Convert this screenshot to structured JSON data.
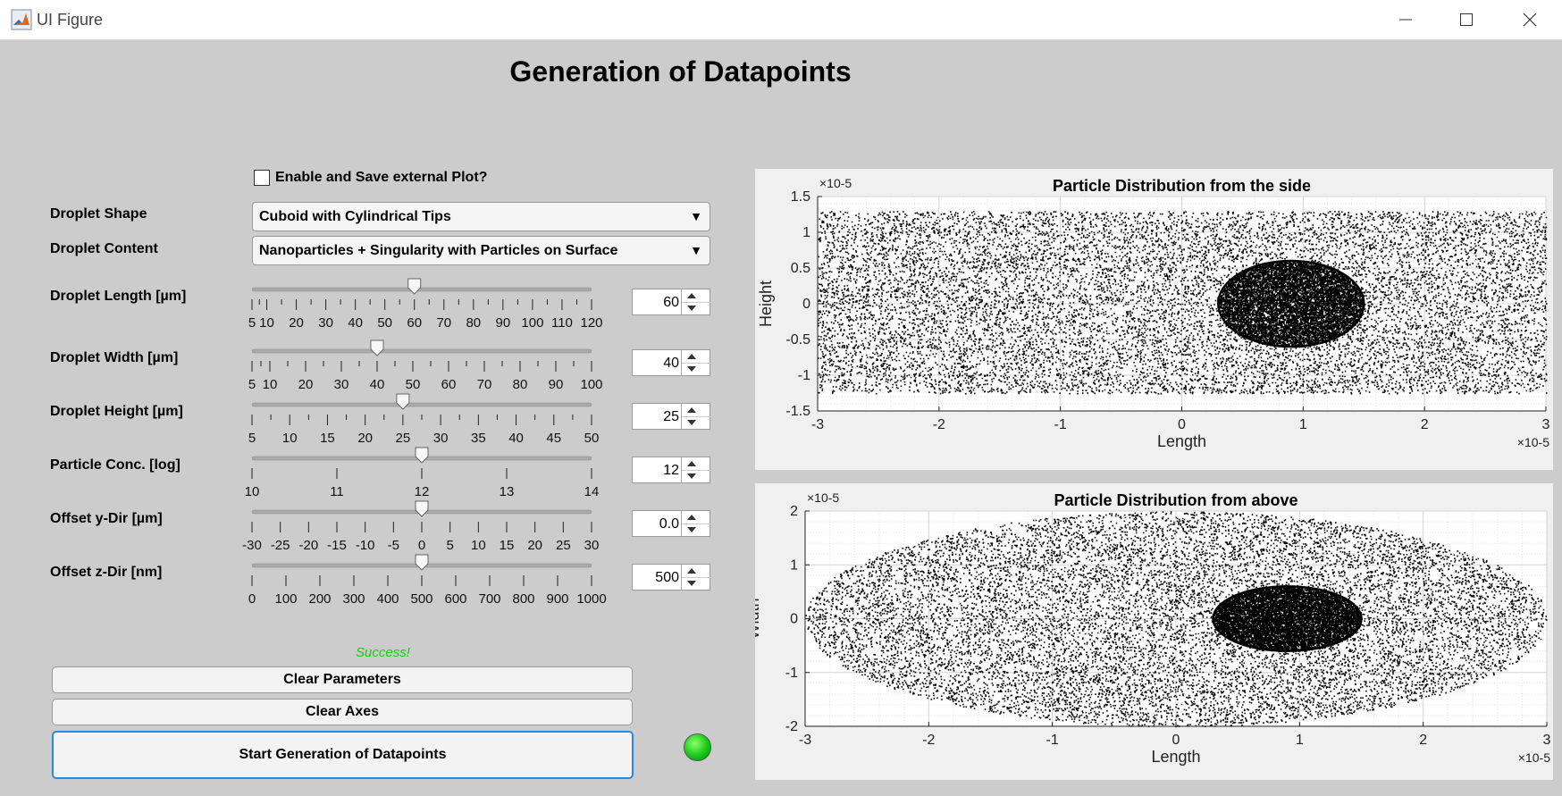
{
  "window": {
    "title": "UI Figure"
  },
  "main": {
    "title": "Generation of Datapoints"
  },
  "options": {
    "enable_external_plot_label": "Enable and Save external Plot?",
    "enable_external_plot_checked": false
  },
  "droplet_shape": {
    "label": "Droplet Shape",
    "value": "Cuboid with Cylindrical Tips"
  },
  "droplet_content": {
    "label": "Droplet Content",
    "value": "Nanoparticles + Singularity with Particles on Surface"
  },
  "sliders": [
    {
      "label": "Droplet Length [µm]",
      "min": 5,
      "max": 120,
      "value": 60,
      "value_text": "60",
      "ticks": [
        "5",
        "10",
        "20",
        "30",
        "40",
        "50",
        "60",
        "70",
        "80",
        "90",
        "100",
        "110",
        "120"
      ],
      "tick_values": [
        5,
        10,
        20,
        30,
        40,
        50,
        60,
        70,
        80,
        90,
        100,
        110,
        120
      ],
      "minor": 2
    },
    {
      "label": "Droplet Width [µm]",
      "min": 5,
      "max": 100,
      "value": 40,
      "value_text": "40",
      "ticks": [
        "5",
        "10",
        "20",
        "30",
        "40",
        "50",
        "60",
        "70",
        "80",
        "90",
        "100"
      ],
      "tick_values": [
        5,
        10,
        20,
        30,
        40,
        50,
        60,
        70,
        80,
        90,
        100
      ],
      "minor": 2
    },
    {
      "label": "Droplet Height [µm]",
      "min": 5,
      "max": 50,
      "value": 25,
      "value_text": "25",
      "ticks": [
        "5",
        "10",
        "15",
        "20",
        "25",
        "30",
        "35",
        "40",
        "45",
        "50"
      ],
      "tick_values": [
        5,
        10,
        15,
        20,
        25,
        30,
        35,
        40,
        45,
        50
      ],
      "minor": 2
    },
    {
      "label": "Particle Conc. [log]",
      "min": 10,
      "max": 14,
      "value": 12,
      "value_text": "12",
      "ticks": [
        "10",
        "11",
        "12",
        "13",
        "14"
      ],
      "tick_values": [
        10,
        11,
        12,
        13,
        14
      ],
      "minor": 1
    },
    {
      "label": "Offset y-Dir [µm]",
      "min": -30,
      "max": 30,
      "value": 0,
      "value_text": "0.0",
      "ticks": [
        "-30",
        "-25",
        "-20",
        "-15",
        "-10",
        "-5",
        "0",
        "5",
        "10",
        "15",
        "20",
        "25",
        "30"
      ],
      "tick_values": [
        -30,
        -25,
        -20,
        -15,
        -10,
        -5,
        0,
        5,
        10,
        15,
        20,
        25,
        30
      ],
      "minor": 1
    },
    {
      "label": "Offset z-Dir [nm]",
      "min": 0,
      "max": 1000,
      "value": 500,
      "value_text": "500",
      "ticks": [
        "0",
        "100",
        "200",
        "300",
        "400",
        "500",
        "600",
        "700",
        "800",
        "900",
        "1000"
      ],
      "tick_values": [
        0,
        100,
        200,
        300,
        400,
        500,
        600,
        700,
        800,
        900,
        1000
      ],
      "minor": 1
    }
  ],
  "status": {
    "text": "Success!",
    "color": "#10d010"
  },
  "buttons": {
    "clear_parameters": "Clear Parameters",
    "clear_axes": "Clear Axes",
    "start": "Start Generation of Datapoints"
  },
  "lamp": {
    "color": "#18c818"
  },
  "chart_data": [
    {
      "type": "scatter",
      "title": "Particle Distribution from the side",
      "xlabel": "Length",
      "ylabel": "Height",
      "xlim": [
        -3e-05,
        3e-05
      ],
      "ylim": [
        -1.5e-05,
        1.5e-05
      ],
      "xticks": [
        "-3",
        "-2",
        "-1",
        "0",
        "1",
        "2",
        "3"
      ],
      "yticks": [
        "-1.5",
        "-1",
        "-0.5",
        "0",
        "0.5",
        "1",
        "1.5"
      ],
      "x_exponent": "×10^-5",
      "y_exponent": "×10^-5",
      "grid": true,
      "distribution": {
        "shape": "rectangle",
        "x_range": [
          -3e-05,
          3e-05
        ],
        "y_range": [
          -1.25e-05,
          1.3e-05
        ]
      },
      "cluster": {
        "shape": "ellipse",
        "center": [
          9e-06,
          0
        ],
        "radius": [
          6e-06,
          6e-06
        ]
      }
    },
    {
      "type": "scatter",
      "title": "Particle Distribution from above",
      "xlabel": "Length",
      "ylabel": "Width",
      "xlim": [
        -3e-05,
        3e-05
      ],
      "ylim": [
        -2e-05,
        2e-05
      ],
      "xticks": [
        "-3",
        "-2",
        "-1",
        "0",
        "1",
        "2",
        "3"
      ],
      "yticks": [
        "-2",
        "-1",
        "0",
        "1",
        "2"
      ],
      "x_exponent": "×10^-5",
      "y_exponent": "×10^-5",
      "grid": true,
      "distribution": {
        "shape": "ellipse",
        "center": [
          0,
          0
        ],
        "radius": [
          3e-05,
          2e-05
        ]
      },
      "cluster": {
        "shape": "ellipse",
        "center": [
          9e-06,
          0
        ],
        "radius": [
          6e-06,
          6e-06
        ]
      }
    }
  ]
}
